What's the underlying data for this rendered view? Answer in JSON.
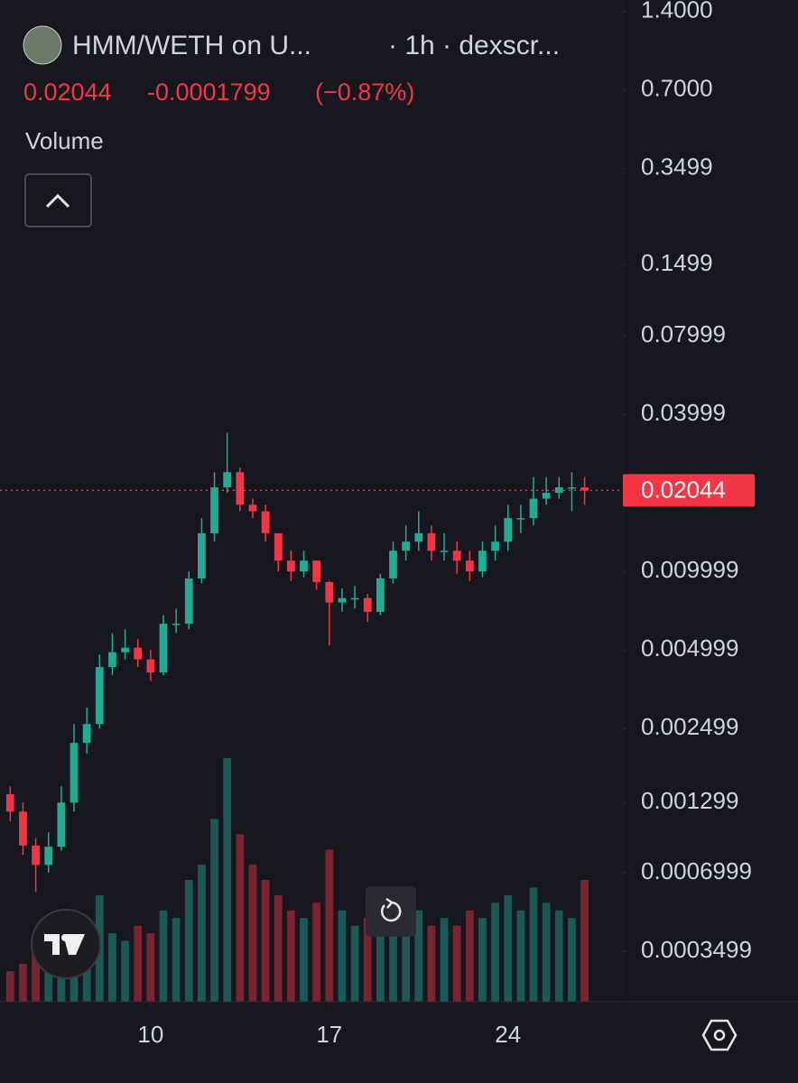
{
  "chart_data": {
    "type": "candlestick",
    "title": "HMM/WETH on U...",
    "subtitle": "· 1h · dexscr...",
    "last_price": 0.02044,
    "change": -0.0001799,
    "change_percent": {
      "value": -0.87,
      "label": "(−0.87%)"
    },
    "volume_label": "Volume",
    "log_scale": true,
    "colors": {
      "up": "#22ab94",
      "down": "#f23645"
    },
    "xlim": [
      4.1,
      28.5
    ],
    "xticks": [
      10,
      17,
      24
    ],
    "ylim": [
      0.000224,
      1.55
    ],
    "yticks": [
      {
        "value": 1.4,
        "label": "1.4000"
      },
      {
        "value": 0.7,
        "label": "0.7000"
      },
      0.3499,
      0.1499,
      0.07999,
      0.03999,
      0.009999,
      0.004999,
      0.002499,
      0.001299,
      0.0006999,
      0.0003499
    ],
    "x": [
      4.5,
      5,
      5.5,
      6,
      6.5,
      7,
      7.5,
      8,
      8.5,
      9,
      9.5,
      10,
      10.5,
      11,
      11.5,
      12,
      12.5,
      13,
      13.5,
      14,
      14.5,
      15,
      15.5,
      16,
      16.5,
      17,
      17.5,
      18,
      18.5,
      19,
      19.5,
      20,
      20.5,
      21,
      21.5,
      22,
      22.5,
      23,
      23.5,
      24,
      24.5,
      25,
      25.5,
      26,
      26.5,
      27
    ],
    "open": [
      0.0014,
      0.0012,
      0.00089,
      0.00075,
      0.00088,
      0.0013,
      0.0022,
      0.0026,
      0.0043,
      0.0049,
      0.0051,
      0.0046,
      0.0041,
      0.0063,
      0.0063,
      0.0094,
      0.014,
      0.021,
      0.024,
      0.018,
      0.017,
      0.014,
      0.011,
      0.01,
      0.011,
      0.0091,
      0.0076,
      0.0079,
      0.0079,
      0.007,
      0.0094,
      0.012,
      0.013,
      0.014,
      0.012,
      0.012,
      0.011,
      0.01,
      0.012,
      0.013,
      0.016,
      0.016,
      0.019,
      0.02,
      0.021,
      0.021
    ],
    "high": [
      0.0015,
      0.0013,
      0.00095,
      0.001,
      0.0015,
      0.0026,
      0.003,
      0.0048,
      0.0058,
      0.006,
      0.0055,
      0.005,
      0.0068,
      0.0072,
      0.01,
      0.016,
      0.024,
      0.034,
      0.025,
      0.019,
      0.018,
      0.014,
      0.012,
      0.012,
      0.011,
      0.0092,
      0.0086,
      0.0088,
      0.0082,
      0.0098,
      0.013,
      0.015,
      0.017,
      0.015,
      0.014,
      0.013,
      0.012,
      0.013,
      0.015,
      0.018,
      0.018,
      0.023,
      0.023,
      0.023,
      0.024,
      0.023
    ],
    "low": [
      0.0011,
      0.00082,
      0.00059,
      0.0007,
      0.00085,
      0.0012,
      0.002,
      0.0025,
      0.004,
      0.0046,
      0.0043,
      0.0038,
      0.004,
      0.0058,
      0.006,
      0.009,
      0.013,
      0.02,
      0.017,
      0.016,
      0.013,
      0.01,
      0.0092,
      0.0095,
      0.0085,
      0.0052,
      0.007,
      0.0072,
      0.0064,
      0.0068,
      0.009,
      0.011,
      0.012,
      0.011,
      0.011,
      0.0098,
      0.0092,
      0.0095,
      0.011,
      0.012,
      0.014,
      0.015,
      0.018,
      0.019,
      0.017,
      0.018
    ],
    "close": [
      0.0012,
      0.00089,
      0.00075,
      0.00088,
      0.0013,
      0.0022,
      0.0026,
      0.0043,
      0.0049,
      0.0051,
      0.0046,
      0.0041,
      0.0063,
      0.0063,
      0.0094,
      0.014,
      0.021,
      0.024,
      0.018,
      0.017,
      0.014,
      0.011,
      0.01,
      0.011,
      0.0091,
      0.0076,
      0.0079,
      0.0079,
      0.007,
      0.0094,
      0.012,
      0.013,
      0.014,
      0.012,
      0.012,
      0.011,
      0.01,
      0.012,
      0.013,
      0.016,
      0.016,
      0.019,
      0.02,
      0.021,
      0.021,
      0.02044
    ],
    "volume": [
      20,
      25,
      40,
      30,
      35,
      60,
      55,
      70,
      45,
      40,
      50,
      45,
      60,
      55,
      80,
      90,
      120,
      160,
      110,
      90,
      80,
      70,
      60,
      55,
      65,
      100,
      60,
      50,
      55,
      60,
      70,
      65,
      60,
      50,
      55,
      50,
      60,
      55,
      65,
      70,
      60,
      75,
      65,
      60,
      55,
      80
    ]
  }
}
